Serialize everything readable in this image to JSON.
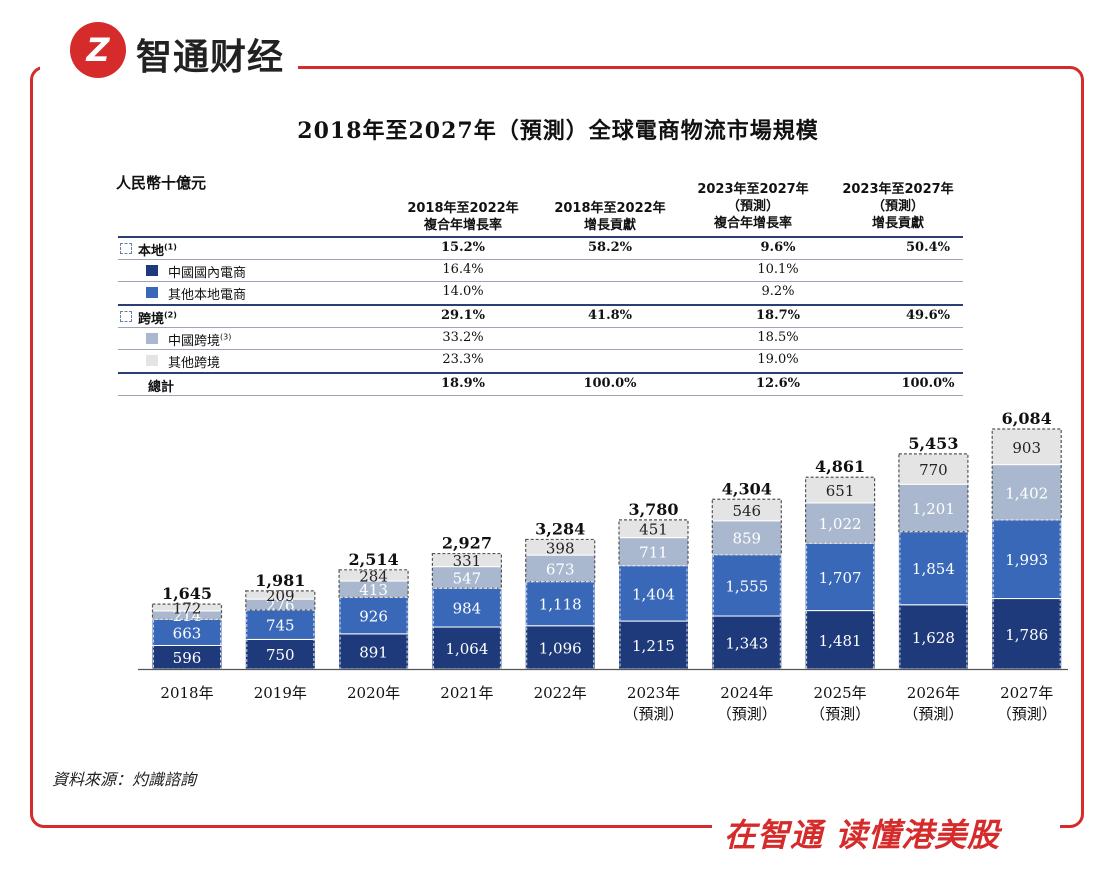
{
  "brand": {
    "logo_letter": "Z",
    "name": "智通财经",
    "slogan": "在智通  读懂港美股"
  },
  "title": "2018年至2027年（預測）全球電商物流市場規模",
  "unit": "人民幣十億元",
  "table": {
    "headers": [
      [
        "2018年至2022年",
        "複合年增長率"
      ],
      [
        "2018年至2022年",
        "增長貢獻"
      ],
      [
        "2023年至2027年",
        "（預測）",
        "複合年增長率"
      ],
      [
        "2023年至2027年",
        "（預測）",
        "增長貢獻"
      ]
    ],
    "rows": [
      {
        "label": "本地",
        "note": "(1)",
        "swatch": "dash",
        "bold": true,
        "values": [
          "15.2%",
          "58.2%",
          "9.6%",
          "50.4%"
        ]
      },
      {
        "label": "中國國內電商",
        "note": "",
        "swatch": "#1f3a7a",
        "bold": false,
        "values": [
          "16.4%",
          "",
          "10.1%",
          ""
        ]
      },
      {
        "label": "其他本地電商",
        "note": "",
        "swatch": "#3a68b8",
        "bold": false,
        "values": [
          "14.0%",
          "",
          "9.2%",
          ""
        ]
      },
      {
        "label": "跨境",
        "note": "(2)",
        "swatch": "dash",
        "bold": true,
        "values": [
          "29.1%",
          "41.8%",
          "18.7%",
          "49.6%"
        ]
      },
      {
        "label": "中國跨境",
        "note": "(3)",
        "swatch": "#a9b8cf",
        "bold": false,
        "values": [
          "33.2%",
          "",
          "18.5%",
          ""
        ]
      },
      {
        "label": "其他跨境",
        "note": "",
        "swatch": "#e4e4e4",
        "bold": false,
        "values": [
          "23.3%",
          "",
          "19.0%",
          ""
        ]
      },
      {
        "label": "總計",
        "note": "",
        "swatch": "none",
        "bold": true,
        "values": [
          "18.9%",
          "100.0%",
          "12.6%",
          "100.0%"
        ]
      }
    ]
  },
  "chart_data": {
    "type": "bar",
    "stacked": true,
    "categories": [
      "2018年",
      "2019年",
      "2020年",
      "2021年",
      "2022年",
      "2023年",
      "2024年",
      "2025年",
      "2026年",
      "2027年"
    ],
    "category_sublabels": [
      "",
      "",
      "",
      "",
      "",
      "（預測）",
      "（預測）",
      "（預測）",
      "（預測）",
      "（預測）"
    ],
    "series": [
      {
        "name": "中國國內電商",
        "color": "#1f3a7a",
        "values": [
          596,
          750,
          891,
          1064,
          1096,
          1215,
          1343,
          1481,
          1628,
          1786
        ],
        "labels": [
          "596",
          "750",
          "891",
          "1,064",
          "1,096",
          "1,215",
          "1,343",
          "1,481",
          "1,628",
          "1,786"
        ]
      },
      {
        "name": "其他本地電商",
        "color": "#3a68b8",
        "values": [
          663,
          745,
          926,
          984,
          1118,
          1404,
          1555,
          1707,
          1854,
          1993
        ],
        "labels": [
          "663",
          "745",
          "926",
          "984",
          "1,118",
          "1,404",
          "1,555",
          "1,707",
          "1,854",
          "1,993"
        ]
      },
      {
        "name": "中國跨境",
        "color": "#a9b8cf",
        "values": [
          214,
          276,
          413,
          547,
          673,
          711,
          859,
          1022,
          1201,
          1402
        ],
        "labels": [
          "214",
          "276",
          "413",
          "547",
          "673",
          "711",
          "859",
          "1,022",
          "1,201",
          "1,402"
        ]
      },
      {
        "name": "其他跨境",
        "color": "#e4e4e4",
        "values": [
          172,
          209,
          284,
          331,
          398,
          451,
          546,
          651,
          770,
          903
        ],
        "labels": [
          "172",
          "209",
          "284",
          "331",
          "398",
          "451",
          "546",
          "651",
          "770",
          "903"
        ]
      }
    ],
    "totals": [
      1645,
      1981,
      2514,
      2927,
      3284,
      3780,
      4304,
      4861,
      5453,
      6084
    ],
    "total_labels": [
      "1,645",
      "1,981",
      "2,514",
      "2,927",
      "3,284",
      "3,780",
      "4,304",
      "4,861",
      "5,453",
      "6,084"
    ],
    "ylim": [
      0,
      6084
    ]
  },
  "source": "資料來源：灼識諮詢"
}
